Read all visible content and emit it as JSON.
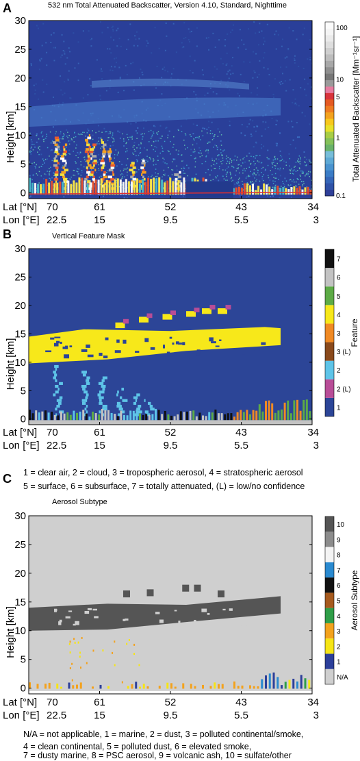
{
  "chart_data": [
    {
      "type": "heatmap",
      "panel": "A",
      "title": "532 nm Total Attenuated Backscatter, Version 4.10, Standard, Nighttime",
      "ylabel": "Height [km]",
      "ylim": [
        -1,
        30
      ],
      "yticks": [
        0,
        5,
        10,
        15,
        20,
        25,
        30
      ],
      "x_rows": [
        {
          "name": "Lat [°N]",
          "ticks": [
            "70",
            "61",
            "52",
            "43",
            "34"
          ]
        },
        {
          "name": "Lon [°E]",
          "ticks": [
            "22.5",
            "15",
            "9.5",
            "5.5",
            "3"
          ]
        }
      ],
      "colorbar": {
        "label": "Total Attenuated Backscatter [Mm⁻¹sr⁻¹]",
        "ticks": [
          "100",
          "10",
          "5",
          "1",
          "0.1"
        ],
        "scale": "log",
        "range": [
          0.1,
          100
        ]
      },
      "features": [
        {
          "desc": "background",
          "height": [
            -1,
            30
          ],
          "value": "0.1"
        },
        {
          "desc": "stratospheric aerosol layer",
          "height": [
            12,
            20
          ],
          "value": "0.5"
        },
        {
          "desc": "clouds",
          "lat": [
            67,
            59
          ],
          "height": [
            1,
            10
          ],
          "value": "1-10"
        },
        {
          "desc": "surface",
          "height": [
            -0.5,
            1
          ],
          "value": "10-100"
        }
      ]
    },
    {
      "type": "heatmap",
      "panel": "B",
      "title": "Vertical Feature Mask",
      "ylabel": "Height [km]",
      "ylim": [
        -1,
        30
      ],
      "yticks": [
        0,
        5,
        10,
        15,
        20,
        25,
        30
      ],
      "x_rows": [
        {
          "name": "Lat [°N]",
          "ticks": [
            "70",
            "61",
            "52",
            "43",
            "34"
          ]
        },
        {
          "name": "Lon [°E]",
          "ticks": [
            "22.5",
            "15",
            "9.5",
            "5.5",
            "3"
          ]
        }
      ],
      "colorbar": {
        "label": "Feature",
        "classes": [
          {
            "label": "1",
            "color": "#2c4597"
          },
          {
            "label": "2 (L)",
            "color": "#b84d97"
          },
          {
            "label": "2",
            "color": "#5ec4e8"
          },
          {
            "label": "3 (L)",
            "color": "#8a4a1c"
          },
          {
            "label": "3",
            "color": "#f08a24"
          },
          {
            "label": "4",
            "color": "#f7e81a"
          },
          {
            "label": "5",
            "color": "#5dab46"
          },
          {
            "label": "6",
            "color": "#c3c3c3"
          },
          {
            "label": "7",
            "color": "#111111"
          }
        ]
      },
      "legend_lines": [
        "1 = clear air, 2 = cloud, 3 = tropospheric aerosol, 4 = stratospheric aerosol",
        "5 = surface, 6 = subsurface, 7 = totally attenuated, (L) = low/no confidence"
      ]
    },
    {
      "type": "heatmap",
      "panel": "C",
      "title": "Aerosol Subtype",
      "ylabel": "Height [km]",
      "ylim": [
        -1,
        30
      ],
      "yticks": [
        0,
        5,
        10,
        15,
        20,
        25,
        30
      ],
      "x_rows": [
        {
          "name": "Lat [°N]",
          "ticks": [
            "70",
            "61",
            "52",
            "43",
            "34"
          ]
        },
        {
          "name": "Lon [°E]",
          "ticks": [
            "22.5",
            "15",
            "9.5",
            "5.5",
            "3"
          ]
        }
      ],
      "colorbar": {
        "label": "Aerosol Subtype",
        "classes": [
          {
            "label": "N/A",
            "color": "#cfcfcf"
          },
          {
            "label": "1",
            "color": "#2c3f9a"
          },
          {
            "label": "2",
            "color": "#f6e516"
          },
          {
            "label": "3",
            "color": "#f3a21d"
          },
          {
            "label": "4",
            "color": "#2f9e48"
          },
          {
            "label": "5",
            "color": "#a65a1e"
          },
          {
            "label": "6",
            "color": "#111111"
          },
          {
            "label": "7",
            "color": "#2a8ad0"
          },
          {
            "label": "8",
            "color": "#f4f4f4"
          },
          {
            "label": "9",
            "color": "#8c8c8c"
          },
          {
            "label": "10",
            "color": "#555555"
          }
        ]
      },
      "legend_lines": [
        "N/A = not applicable, 1 = marine, 2 = dust, 3 = polluted continental/smoke,",
        "4 = clean continental, 5 = polluted dust, 6 = elevated smoke,",
        "7 = dusty marine, 8 = PSC aerosol, 9 = volcanic ash, 10 = sulfate/other"
      ]
    }
  ]
}
